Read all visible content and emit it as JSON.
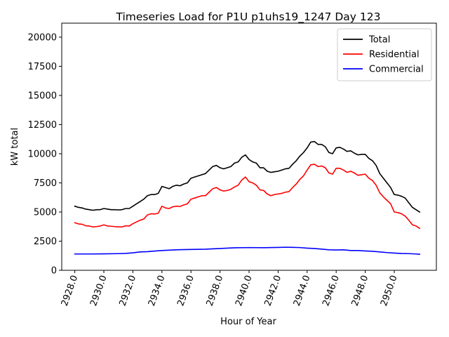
{
  "chart_data": {
    "type": "line",
    "title": "Timeseries Load for P1U p1uhs19_1247  Day 123",
    "xlabel": "Hour of Year",
    "ylabel": "kW total",
    "xlim": [
      2927.1,
      2952.9
    ],
    "ylim": [
      0,
      21200
    ],
    "xticks": [
      2928,
      2930,
      2932,
      2934,
      2936,
      2938,
      2940,
      2942,
      2944,
      2946,
      2948,
      2950
    ],
    "xtick_labels": [
      "2928.0",
      "2930.0",
      "2932.0",
      "2934.0",
      "2936.0",
      "2938.0",
      "2940.0",
      "2942.0",
      "2944.0",
      "2946.0",
      "2948.0",
      "2950.0"
    ],
    "yticks": [
      0,
      2500,
      5000,
      7500,
      10000,
      12500,
      15000,
      17500,
      20000
    ],
    "ytick_labels": [
      "0",
      "2500",
      "5000",
      "7500",
      "10000",
      "12500",
      "15000",
      "17500",
      "20000"
    ],
    "grid": false,
    "legend_position": "top-right",
    "series": [
      {
        "name": "Total",
        "color": "#000000",
        "x": [
          2928.0,
          2928.25,
          2928.5,
          2928.75,
          2929.0,
          2929.25,
          2929.5,
          2929.75,
          2930.0,
          2930.25,
          2930.5,
          2930.75,
          2931.0,
          2931.25,
          2931.5,
          2931.75,
          2932.0,
          2932.25,
          2932.5,
          2932.75,
          2933.0,
          2933.25,
          2933.5,
          2933.75,
          2934.0,
          2934.25,
          2934.5,
          2934.75,
          2935.0,
          2935.25,
          2935.5,
          2935.75,
          2936.0,
          2936.25,
          2936.5,
          2936.75,
          2937.0,
          2937.25,
          2937.5,
          2937.75,
          2938.0,
          2938.25,
          2938.5,
          2938.75,
          2939.0,
          2939.25,
          2939.5,
          2939.75,
          2940.0,
          2940.25,
          2940.5,
          2940.75,
          2941.0,
          2941.25,
          2941.5,
          2941.75,
          2942.0,
          2942.25,
          2942.5,
          2942.75,
          2943.0,
          2943.25,
          2943.5,
          2943.75,
          2944.0,
          2944.25,
          2944.5,
          2944.75,
          2945.0,
          2945.25,
          2945.5,
          2945.75,
          2946.0,
          2946.25,
          2946.5,
          2946.75,
          2947.0,
          2947.25,
          2947.5,
          2947.75,
          2948.0,
          2948.25,
          2948.5,
          2948.75,
          2949.0,
          2949.25,
          2949.5,
          2949.75,
          2950.0,
          2950.25,
          2950.5,
          2950.75,
          2951.0,
          2951.25,
          2951.5,
          2951.75
        ],
        "values": [
          5500,
          5400,
          5350,
          5250,
          5200,
          5150,
          5200,
          5200,
          5300,
          5250,
          5200,
          5200,
          5180,
          5200,
          5300,
          5300,
          5500,
          5700,
          5900,
          6100,
          6400,
          6500,
          6500,
          6600,
          7200,
          7100,
          7000,
          7200,
          7300,
          7250,
          7400,
          7500,
          7900,
          8000,
          8100,
          8200,
          8300,
          8600,
          8900,
          9000,
          8800,
          8700,
          8800,
          8900,
          9200,
          9300,
          9700,
          9900,
          9500,
          9300,
          9200,
          8800,
          8800,
          8500,
          8400,
          8450,
          8500,
          8600,
          8700,
          8750,
          9100,
          9400,
          9800,
          10100,
          10500,
          11000,
          11050,
          10800,
          10800,
          10600,
          10100,
          10000,
          10500,
          10550,
          10400,
          10200,
          10250,
          10050,
          9900,
          9950,
          9950,
          9600,
          9400,
          9000,
          8300,
          7900,
          7500,
          7100,
          6500,
          6450,
          6350,
          6200,
          5800,
          5400,
          5200,
          5000
        ]
      },
      {
        "name": "Residential",
        "color": "#ff0000",
        "x": [
          2928.0,
          2928.25,
          2928.5,
          2928.75,
          2929.0,
          2929.25,
          2929.5,
          2929.75,
          2930.0,
          2930.25,
          2930.5,
          2930.75,
          2931.0,
          2931.25,
          2931.5,
          2931.75,
          2932.0,
          2932.25,
          2932.5,
          2932.75,
          2933.0,
          2933.25,
          2933.5,
          2933.75,
          2934.0,
          2934.25,
          2934.5,
          2934.75,
          2935.0,
          2935.25,
          2935.5,
          2935.75,
          2936.0,
          2936.25,
          2936.5,
          2936.75,
          2937.0,
          2937.25,
          2937.5,
          2937.75,
          2938.0,
          2938.25,
          2938.5,
          2938.75,
          2939.0,
          2939.25,
          2939.5,
          2939.75,
          2940.0,
          2940.25,
          2940.5,
          2940.75,
          2941.0,
          2941.25,
          2941.5,
          2941.75,
          2942.0,
          2942.25,
          2942.5,
          2942.75,
          2943.0,
          2943.25,
          2943.5,
          2943.75,
          2944.0,
          2944.25,
          2944.5,
          2944.75,
          2945.0,
          2945.25,
          2945.5,
          2945.75,
          2946.0,
          2946.25,
          2946.5,
          2946.75,
          2947.0,
          2947.25,
          2947.5,
          2947.75,
          2948.0,
          2948.25,
          2948.5,
          2948.75,
          2949.0,
          2949.25,
          2949.5,
          2949.75,
          2950.0,
          2950.25,
          2950.5,
          2950.75,
          2951.0,
          2951.25,
          2951.5,
          2951.75
        ],
        "values": [
          4080,
          3980,
          3950,
          3820,
          3800,
          3720,
          3750,
          3800,
          3900,
          3800,
          3780,
          3750,
          3720,
          3720,
          3820,
          3800,
          4000,
          4150,
          4300,
          4400,
          4750,
          4850,
          4830,
          4900,
          5500,
          5350,
          5300,
          5450,
          5500,
          5480,
          5600,
          5700,
          6100,
          6200,
          6300,
          6400,
          6400,
          6700,
          7000,
          7100,
          6900,
          6800,
          6850,
          6950,
          7150,
          7300,
          7750,
          8000,
          7600,
          7500,
          7300,
          6900,
          6850,
          6550,
          6400,
          6500,
          6550,
          6600,
          6700,
          6750,
          7100,
          7400,
          7800,
          8100,
          8600,
          9050,
          9100,
          8900,
          8950,
          8800,
          8350,
          8250,
          8750,
          8750,
          8600,
          8400,
          8500,
          8350,
          8150,
          8200,
          8250,
          7900,
          7700,
          7300,
          6650,
          6300,
          6000,
          5700,
          5000,
          4950,
          4850,
          4650,
          4300,
          3900,
          3800,
          3600
        ]
      },
      {
        "name": "Commercial",
        "color": "#0000ff",
        "x": [
          2928.0,
          2929.0,
          2930.0,
          2931.0,
          2931.5,
          2932.0,
          2932.5,
          2933.0,
          2933.5,
          2934.0,
          2935.0,
          2936.0,
          2937.0,
          2938.0,
          2939.0,
          2940.0,
          2941.0,
          2942.0,
          2942.5,
          2943.0,
          2943.5,
          2944.0,
          2944.5,
          2945.0,
          2945.5,
          2946.0,
          2946.5,
          2947.0,
          2947.5,
          2948.0,
          2948.5,
          2949.0,
          2949.5,
          2950.0,
          2950.5,
          2951.0,
          2951.5,
          2951.75
        ],
        "values": [
          1400,
          1400,
          1410,
          1430,
          1450,
          1500,
          1580,
          1600,
          1650,
          1700,
          1760,
          1790,
          1810,
          1870,
          1930,
          1950,
          1940,
          1960,
          1980,
          1970,
          1950,
          1900,
          1870,
          1820,
          1760,
          1740,
          1760,
          1700,
          1700,
          1660,
          1630,
          1580,
          1520,
          1480,
          1440,
          1430,
          1400,
          1380
        ]
      }
    ]
  }
}
